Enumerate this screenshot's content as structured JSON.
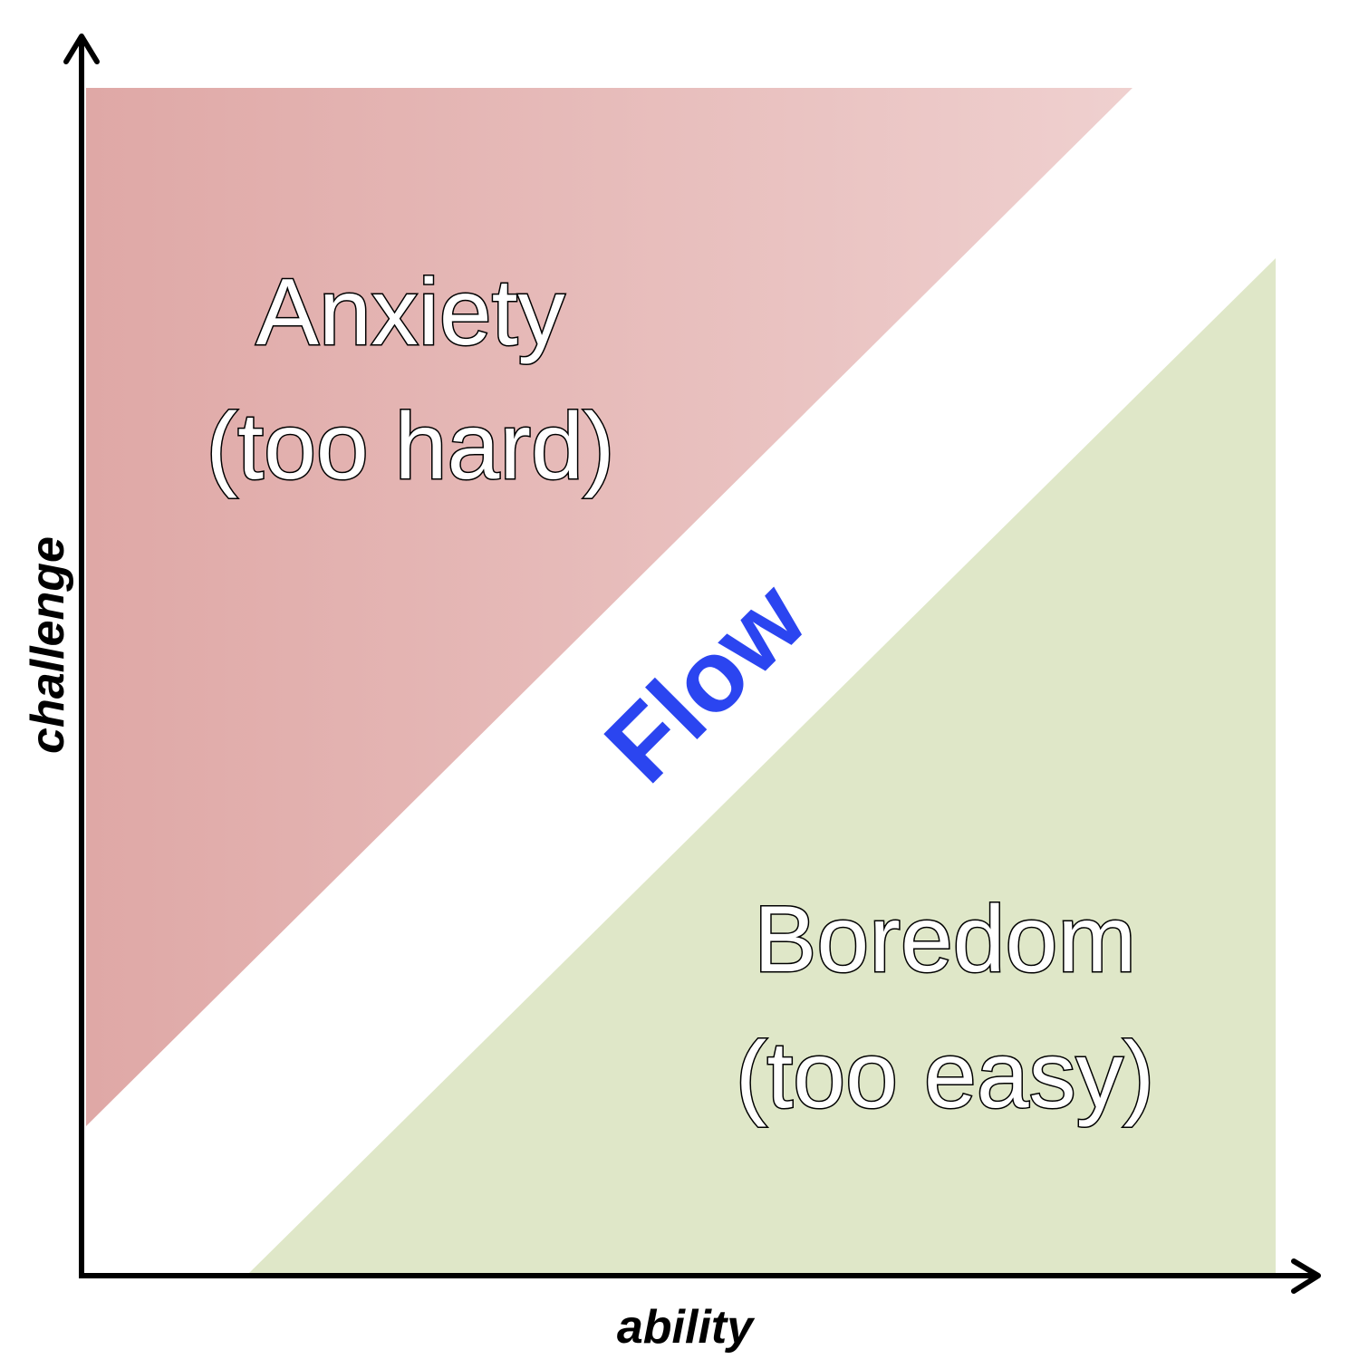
{
  "zones": {
    "anxiety": {
      "title": "Anxiety",
      "subtitle": "(too hard)",
      "color": "#e3aeab"
    },
    "flow": {
      "label": "Flow",
      "color": "#2b45f0"
    },
    "boredom": {
      "title": "Boredom",
      "subtitle": "(too easy)",
      "color": "#dfe7c8"
    }
  },
  "axes": {
    "x_label": "ability",
    "y_label": "challenge"
  }
}
